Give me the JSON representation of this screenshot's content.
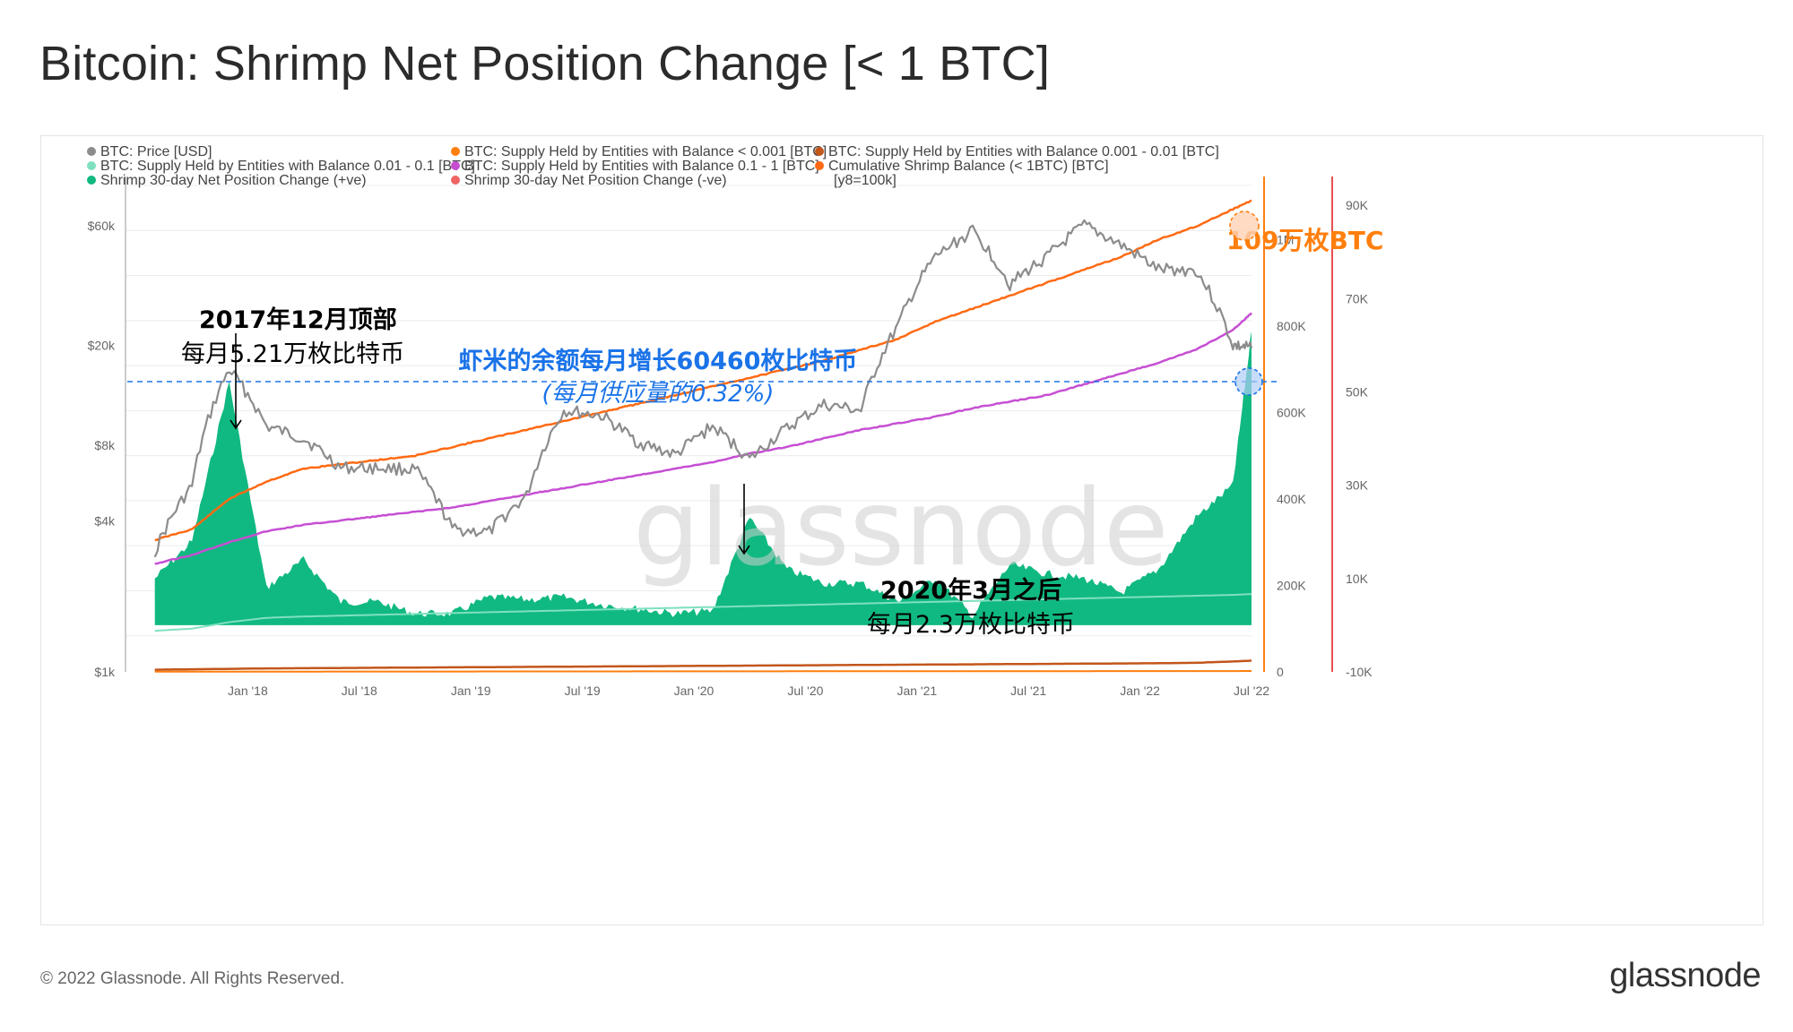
{
  "title": "Bitcoin: Shrimp Net Position Change [< 1 BTC]",
  "copyright": "© 2022 Glassnode. All Rights Reserved.",
  "brand": "glassnode",
  "watermark": "glassnode",
  "colors": {
    "price": "#8c8c8c",
    "supply_lt_0001": "#ff7f0e",
    "supply_0001_001": "#c2561b",
    "supply_001_01": "#7fe0c0",
    "supply_01_1": "#c64fd3",
    "cumulative": "#ff6a13",
    "pos_change": "#10b981",
    "neg_change": "#f06464",
    "annotation_blue": "#1a73e8",
    "annotation_orange": "#ff7f0e"
  },
  "legend": [
    {
      "label": "BTC: Price [USD]",
      "color": "#8c8c8c"
    },
    {
      "label": "BTC: Supply Held by Entities with Balance < 0.001 [BTC]",
      "color": "#ff7f0e"
    },
    {
      "label": "BTC: Supply Held by Entities with Balance 0.001 - 0.01 [BTC]",
      "color": "#c2561b"
    },
    {
      "label": "BTC: Supply Held by Entities with Balance 0.01 - 0.1 [BTC]",
      "color": "#7fe0c0"
    },
    {
      "label": "BTC: Supply Held by Entities with Balance 0.1 - 1 [BTC]",
      "color": "#c64fd3"
    },
    {
      "label": "Cumulative Shrimp Balance (< 1BTC) [BTC]",
      "color": "#ff6a13"
    },
    {
      "label": "Shrimp 30-day Net Position Change (+ve)",
      "color": "#10b981"
    },
    {
      "label": "Shrimp 30-day Net Position Change (-ve)",
      "color": "#f06464"
    },
    {
      "label": "[y8=100k]",
      "color": ""
    }
  ],
  "annotations": {
    "peak_2017_title": "2017年12月顶部",
    "peak_2017_sub": "每月5.21万枚比特币",
    "growth_title": "虾米的余额每月增长60460枚比特币",
    "growth_sub": "(每月供应量的0.32%)",
    "march_2020_title": "2020年3月之后",
    "march_2020_sub": "每月2.3万枚比特币",
    "cum_balance_label": "109万枚BTC"
  },
  "chart_data": {
    "type": "line",
    "x_ticks": [
      "Jan '18",
      "Jul '18",
      "Jan '19",
      "Jul '19",
      "Jan '20",
      "Jul '20",
      "Jan '21",
      "Jul '21",
      "Jan '22",
      "Jul '22"
    ],
    "y_left_ticks": [
      "$60k",
      "$20k",
      "$8k",
      "$4k",
      "$1k"
    ],
    "y_left_scale": "log",
    "y_mid_ticks": [
      "1M",
      "800K",
      "600K",
      "400K",
      "200K",
      "0"
    ],
    "y_right_ticks": [
      "90K",
      "70K",
      "50K",
      "30K",
      "10K",
      "-10K"
    ],
    "x": [
      "2017-08",
      "2017-10",
      "2017-12",
      "2018-02",
      "2018-04",
      "2018-06",
      "2018-08",
      "2018-10",
      "2018-12",
      "2019-02",
      "2019-04",
      "2019-06",
      "2019-08",
      "2019-10",
      "2019-12",
      "2020-02",
      "2020-04",
      "2020-06",
      "2020-08",
      "2020-10",
      "2020-12",
      "2021-02",
      "2021-04",
      "2021-06",
      "2021-08",
      "2021-10",
      "2021-12",
      "2022-02",
      "2022-04",
      "2022-06",
      "2022-07"
    ],
    "series": [
      {
        "name": "BTC: Price [USD]",
        "axis": "left",
        "values": [
          3000,
          5500,
          16000,
          9500,
          8500,
          6500,
          6500,
          6400,
          3700,
          3600,
          5000,
          11000,
          10500,
          8200,
          7300,
          9500,
          7000,
          9300,
          11600,
          11000,
          24000,
          45000,
          57000,
          35000,
          45000,
          60000,
          50000,
          40000,
          40000,
          20000,
          19500
        ]
      },
      {
        "name": "Cumulative Shrimp Balance (< 1BTC) [BTC]",
        "axis": "mid",
        "values": [
          305000,
          330000,
          400000,
          440000,
          470000,
          480000,
          490000,
          500000,
          520000,
          540000,
          560000,
          580000,
          600000,
          620000,
          640000,
          660000,
          680000,
          700000,
          720000,
          745000,
          770000,
          810000,
          840000,
          870000,
          900000,
          930000,
          960000,
          1000000,
          1030000,
          1070000,
          1090000
        ]
      },
      {
        "name": "BTC: Supply Held by Entities with Balance 0.1 - 1 [BTC]",
        "axis": "mid",
        "values": [
          250000,
          270000,
          300000,
          325000,
          340000,
          350000,
          360000,
          370000,
          380000,
          395000,
          410000,
          425000,
          440000,
          455000,
          470000,
          485000,
          505000,
          520000,
          540000,
          560000,
          575000,
          590000,
          610000,
          625000,
          640000,
          665000,
          690000,
          715000,
          745000,
          790000,
          830000
        ]
      },
      {
        "name": "BTC: Supply Held by Entities with Balance 0.01 - 0.1 [BTC]",
        "axis": "mid",
        "values": [
          95000,
          100000,
          115000,
          125000,
          128000,
          130000,
          132000,
          134000,
          136000,
          138000,
          140000,
          142000,
          144000,
          146000,
          148000,
          150000,
          152000,
          154000,
          156000,
          158000,
          160000,
          162000,
          164000,
          166000,
          168000,
          170000,
          172000,
          174000,
          176000,
          178000,
          180000
        ]
      },
      {
        "name": "BTC: Supply Held by Entities with Balance 0.001 - 0.01 [BTC]",
        "axis": "mid",
        "values": [
          5000,
          6000,
          7000,
          8000,
          8500,
          9000,
          9500,
          10000,
          10500,
          11000,
          11500,
          12000,
          12500,
          13000,
          13500,
          14000,
          14500,
          15000,
          15500,
          16000,
          16500,
          17000,
          17500,
          18000,
          18500,
          19000,
          19500,
          20000,
          21000,
          24000,
          26000
        ]
      },
      {
        "name": "BTC: Supply Held by Entities with Balance < 0.001 [BTC]",
        "axis": "mid",
        "values": [
          500,
          550,
          600,
          650,
          700,
          750,
          800,
          850,
          900,
          950,
          1000,
          1050,
          1100,
          1150,
          1200,
          1250,
          1300,
          1350,
          1400,
          1450,
          1500,
          1550,
          1600,
          1650,
          1700,
          1750,
          1800,
          1850,
          1900,
          1950,
          2000
        ]
      },
      {
        "name": "Shrimp 30-day Net Position Change (+ve)",
        "axis": "right",
        "values": [
          10000,
          18000,
          52100,
          8000,
          14000,
          5000,
          5000,
          2500,
          2500,
          6000,
          5500,
          6000,
          4500,
          3500,
          2500,
          3000,
          23000,
          12000,
          9000,
          9000,
          5000,
          10000,
          2000,
          13000,
          11000,
          10000,
          7000,
          12000,
          23000,
          30000,
          63000
        ]
      }
    ],
    "mid_ylim": [
      0,
      1100000
    ],
    "right_ylim": [
      -10000,
      100000
    ],
    "left_ylim": [
      1000,
      80000
    ],
    "legend_position": "top",
    "grid": true
  }
}
